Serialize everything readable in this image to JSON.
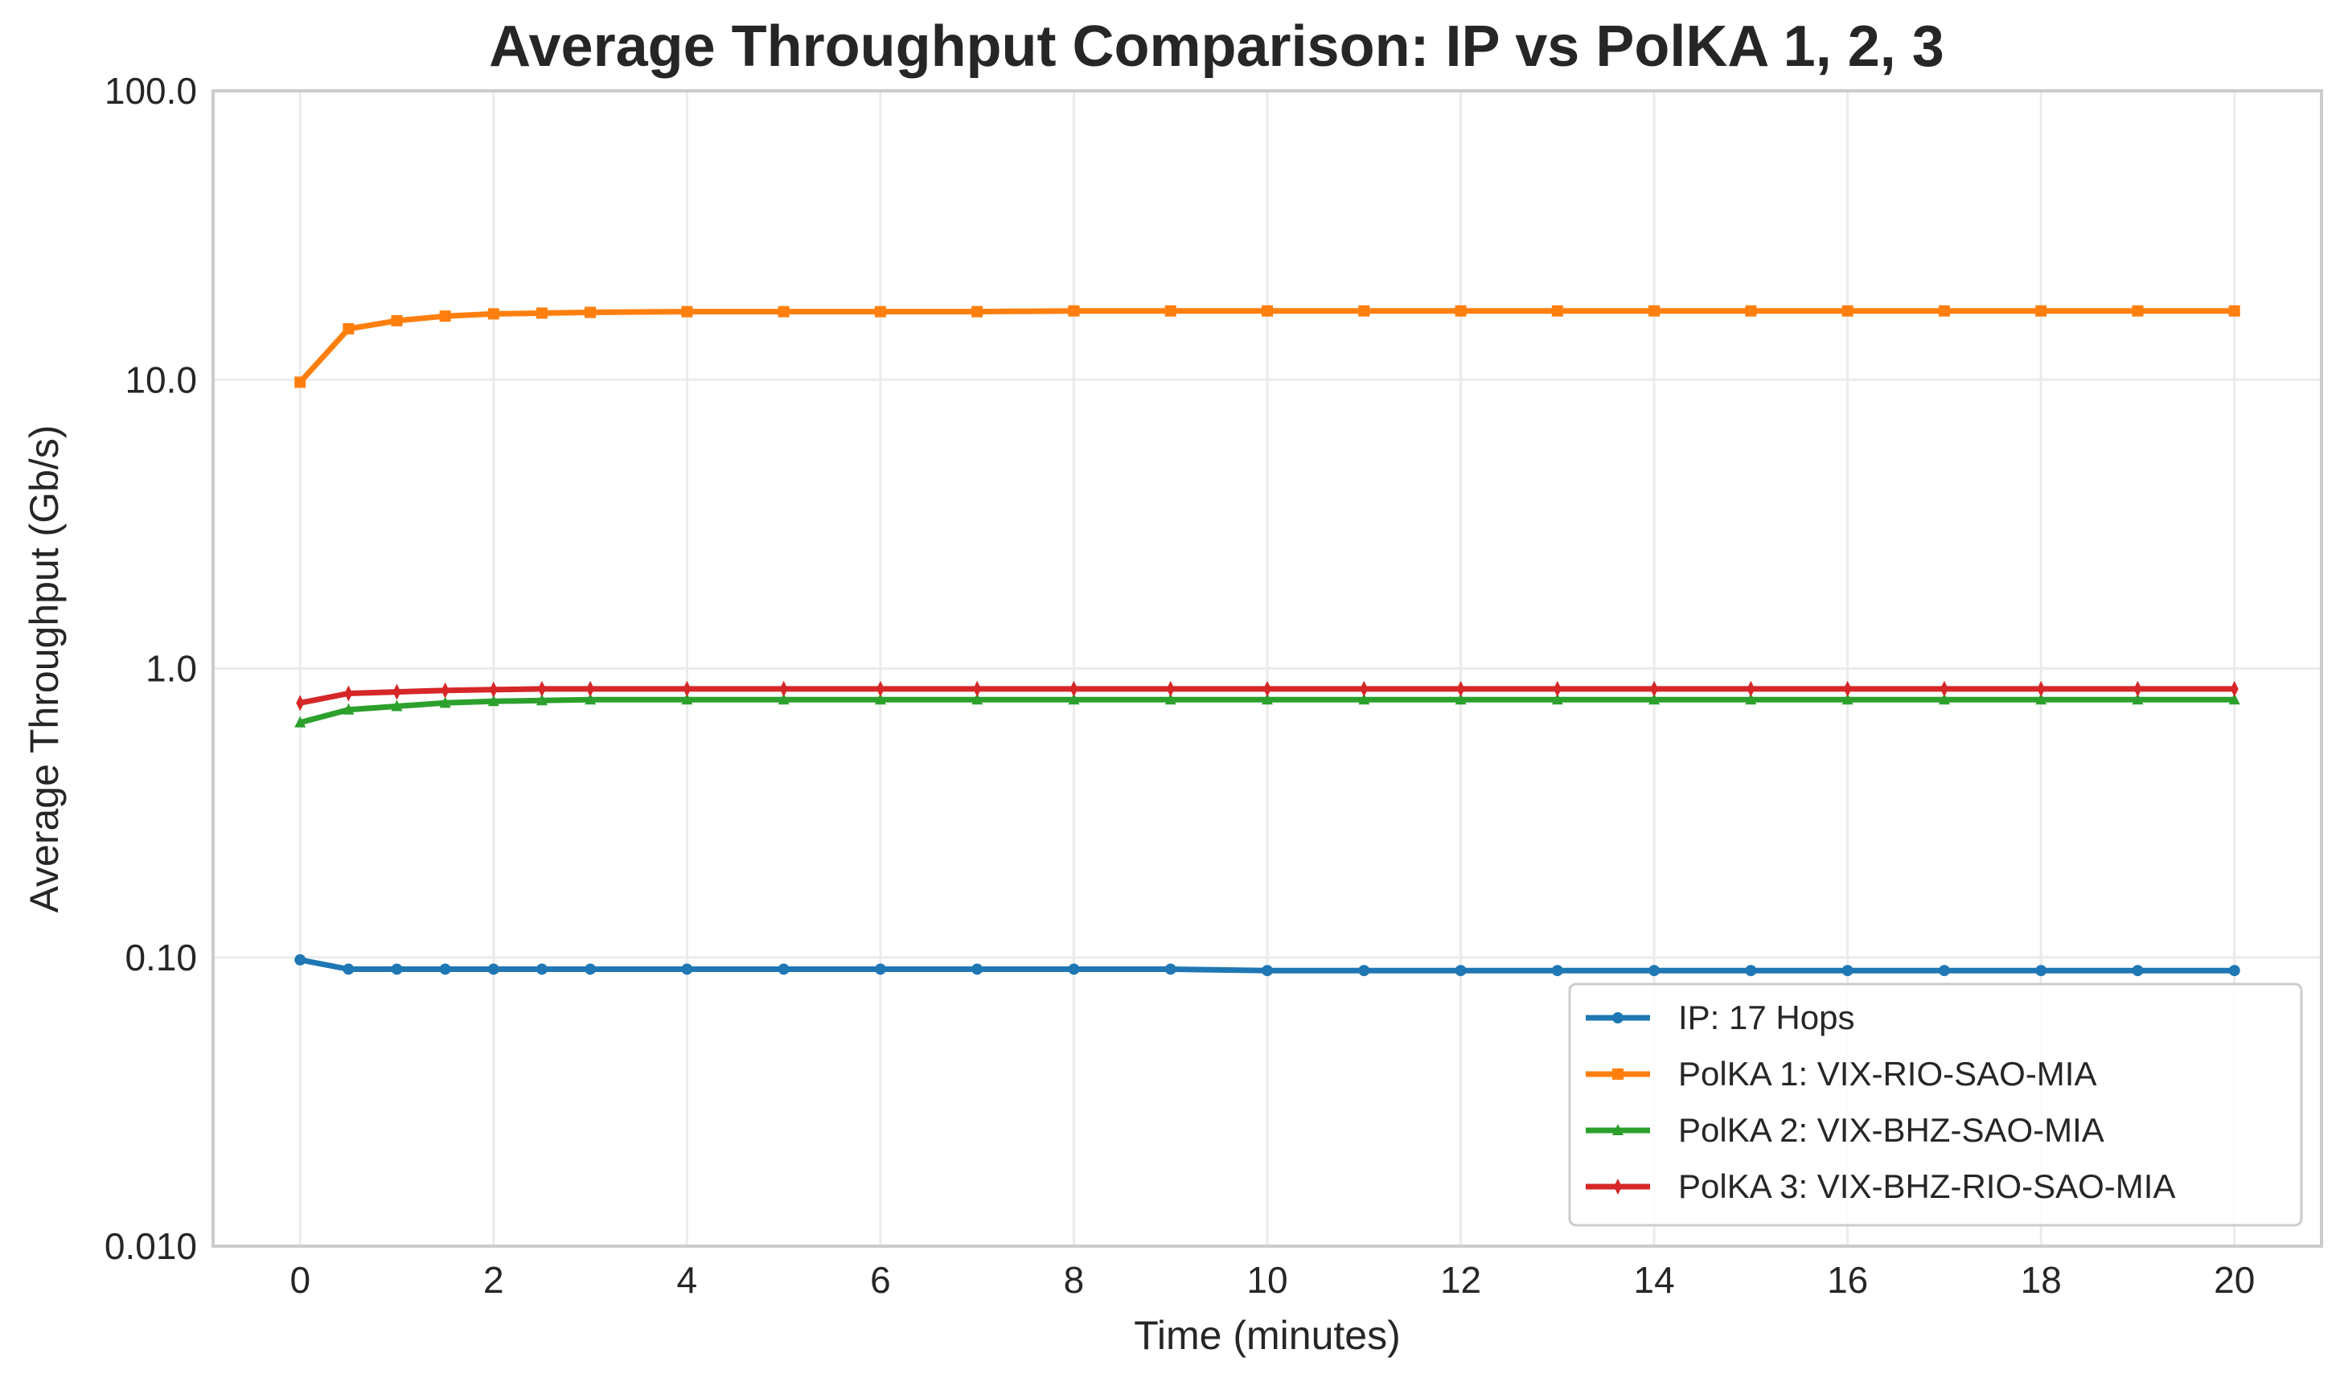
{
  "chart_data": {
    "type": "line",
    "title": "Average Throughput Comparison: IP vs PolKA 1, 2, 3",
    "xlabel": "Time (minutes)",
    "ylabel": "Average Throughput (Gb/s)",
    "xlim": [
      -0.9,
      20.9
    ],
    "ylim": [
      0.01,
      100
    ],
    "yscale": "log",
    "xticks": [
      0,
      2,
      4,
      6,
      8,
      10,
      12,
      14,
      16,
      18,
      20
    ],
    "xtick_labels": [
      "0",
      "2",
      "4",
      "6",
      "8",
      "10",
      "12",
      "14",
      "16",
      "18",
      "20"
    ],
    "yticks": [
      0.01,
      0.1,
      1,
      10,
      100
    ],
    "ytick_labels": [
      "0.010",
      "0.10",
      "1.0",
      "10.0",
      "100.0"
    ],
    "grid": true,
    "legend_position": "bottom-right",
    "x": [
      0,
      0.5,
      1,
      1.5,
      2,
      2.5,
      3,
      4,
      5,
      6,
      7,
      8,
      9,
      10,
      11,
      12,
      13,
      14,
      15,
      16,
      17,
      18,
      19,
      20
    ],
    "series": [
      {
        "name": "IP: 17 Hops",
        "color": "#1f77b4",
        "marker": "circle",
        "values": [
          0.098,
          0.091,
          0.091,
          0.091,
          0.091,
          0.091,
          0.091,
          0.091,
          0.091,
          0.091,
          0.091,
          0.091,
          0.091,
          0.09,
          0.09,
          0.09,
          0.09,
          0.09,
          0.09,
          0.09,
          0.09,
          0.09,
          0.09,
          0.09
        ]
      },
      {
        "name": "PolKA 1: VIX-RIO-SAO-MIA",
        "color": "#ff7f0e",
        "marker": "square",
        "values": [
          9.8,
          15.0,
          16.0,
          16.6,
          16.9,
          17.0,
          17.1,
          17.2,
          17.2,
          17.2,
          17.2,
          17.3,
          17.3,
          17.3,
          17.3,
          17.3,
          17.3,
          17.3,
          17.3,
          17.3,
          17.3,
          17.3,
          17.3,
          17.3
        ]
      },
      {
        "name": "PolKA 2: VIX-BHZ-SAO-MIA",
        "color": "#2ca02c",
        "marker": "triangle",
        "values": [
          0.65,
          0.72,
          0.74,
          0.76,
          0.77,
          0.775,
          0.78,
          0.78,
          0.78,
          0.78,
          0.78,
          0.78,
          0.78,
          0.78,
          0.78,
          0.78,
          0.78,
          0.78,
          0.78,
          0.78,
          0.78,
          0.78,
          0.78,
          0.78
        ]
      },
      {
        "name": "PolKA 3: VIX-BHZ-RIO-SAO-MIA",
        "color": "#d62728",
        "marker": "diamond",
        "values": [
          0.76,
          0.82,
          0.83,
          0.84,
          0.845,
          0.85,
          0.85,
          0.85,
          0.85,
          0.85,
          0.85,
          0.85,
          0.85,
          0.85,
          0.85,
          0.85,
          0.85,
          0.85,
          0.85,
          0.85,
          0.85,
          0.85,
          0.85,
          0.85
        ]
      }
    ]
  }
}
